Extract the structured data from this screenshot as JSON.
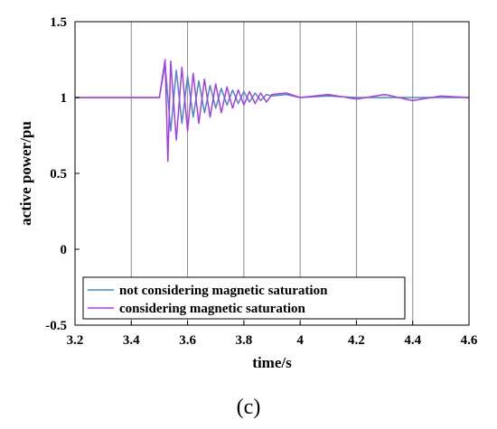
{
  "chart_data": {
    "type": "line",
    "xlabel": "time/s",
    "ylabel": "active power/pu",
    "xlim": [
      3.2,
      4.6
    ],
    "ylim": [
      -0.5,
      1.5
    ],
    "xticks": [
      "3.2",
      "3.4",
      "3.6",
      "3.8",
      "4",
      "4.2",
      "4.4",
      "4.6"
    ],
    "yticks": [
      "-0.5",
      "0",
      "0.5",
      "1",
      "1.5"
    ],
    "grid": "vertical",
    "legend_position": "bottom-left",
    "panel_label": "(c)",
    "series": [
      {
        "name": "not considering magnetic saturation",
        "color": "#4f86c6",
        "x": [
          3.2,
          3.5,
          3.52,
          3.54,
          3.56,
          3.58,
          3.6,
          3.62,
          3.64,
          3.66,
          3.68,
          3.7,
          3.72,
          3.74,
          3.76,
          3.78,
          3.8,
          3.82,
          3.84,
          3.86,
          3.88,
          3.9,
          3.95,
          4.0,
          4.1,
          4.2,
          4.3,
          4.4,
          4.5,
          4.6
        ],
        "y": [
          1.0,
          1.0,
          1.22,
          0.78,
          1.18,
          0.83,
          1.14,
          0.87,
          1.11,
          0.9,
          1.08,
          0.93,
          1.06,
          0.95,
          1.05,
          0.96,
          1.04,
          0.97,
          1.03,
          0.98,
          1.02,
          1.01,
          1.02,
          1.0,
          1.01,
          1.0,
          1.0,
          1.0,
          1.0,
          1.0
        ]
      },
      {
        "name": "considering magnetic saturation",
        "color": "#a53ee6",
        "x": [
          3.2,
          3.5,
          3.52,
          3.53,
          3.54,
          3.56,
          3.58,
          3.6,
          3.62,
          3.64,
          3.66,
          3.68,
          3.7,
          3.72,
          3.74,
          3.76,
          3.78,
          3.8,
          3.82,
          3.84,
          3.86,
          3.88,
          3.9,
          3.95,
          4.0,
          4.1,
          4.2,
          4.3,
          4.4,
          4.5,
          4.6
        ],
        "y": [
          1.0,
          1.0,
          1.25,
          0.58,
          1.24,
          0.72,
          1.2,
          0.78,
          1.16,
          0.83,
          1.12,
          0.87,
          1.09,
          0.9,
          1.07,
          0.93,
          1.05,
          0.95,
          1.04,
          0.96,
          1.03,
          0.97,
          1.02,
          1.03,
          1.0,
          1.02,
          0.99,
          1.02,
          0.98,
          1.01,
          1.0
        ]
      }
    ]
  }
}
